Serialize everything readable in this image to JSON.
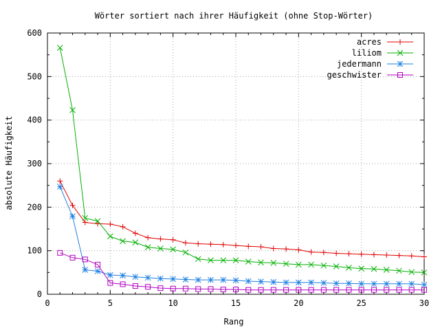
{
  "chart_data": {
    "type": "line",
    "title": "Wörter sortiert nach ihrer Häufigkeit (ohne Stop-Wörter)",
    "xlabel": "Rang",
    "ylabel": "absolute Häufigkeit",
    "xlim": [
      0,
      30
    ],
    "ylim": [
      0,
      600
    ],
    "xticks": [
      0,
      5,
      10,
      15,
      20,
      25,
      30
    ],
    "yticks": [
      0,
      100,
      200,
      300,
      400,
      500,
      600
    ],
    "grid": true,
    "legend": "top-right",
    "x": [
      1,
      2,
      3,
      4,
      5,
      6,
      7,
      8,
      9,
      10,
      11,
      12,
      13,
      14,
      15,
      16,
      17,
      18,
      19,
      20,
      21,
      22,
      23,
      24,
      25,
      26,
      27,
      28,
      29,
      30
    ],
    "series": [
      {
        "name": "acres",
        "color": "#e00000",
        "marker": "plus",
        "values": [
          260,
          204,
          165,
          162,
          161,
          155,
          140,
          130,
          127,
          125,
          118,
          116,
          115,
          114,
          112,
          110,
          109,
          105,
          104,
          102,
          97,
          96,
          94,
          93,
          92,
          91,
          90,
          89,
          88,
          86
        ]
      },
      {
        "name": "liliom",
        "color": "#00b000",
        "marker": "cross",
        "values": [
          566,
          423,
          175,
          168,
          133,
          122,
          119,
          108,
          105,
          103,
          96,
          81,
          78,
          78,
          78,
          75,
          73,
          72,
          70,
          68,
          68,
          66,
          64,
          61,
          59,
          58,
          56,
          54,
          51,
          50
        ]
      },
      {
        "name": "jedermann",
        "color": "#1e7fe0",
        "marker": "star",
        "values": [
          247,
          179,
          56,
          53,
          44,
          43,
          40,
          38,
          36,
          35,
          34,
          33,
          33,
          33,
          32,
          30,
          29,
          28,
          27,
          27,
          27,
          26,
          25,
          25,
          24,
          24,
          24,
          24,
          24,
          22
        ]
      },
      {
        "name": "geschwister",
        "color": "#b000c0",
        "marker": "square",
        "values": [
          95,
          84,
          80,
          68,
          26,
          23,
          19,
          17,
          14,
          13,
          13,
          12,
          12,
          11,
          11,
          10,
          10,
          10,
          10,
          10,
          10,
          10,
          10,
          10,
          10,
          10,
          10,
          10,
          10,
          10
        ]
      }
    ]
  }
}
